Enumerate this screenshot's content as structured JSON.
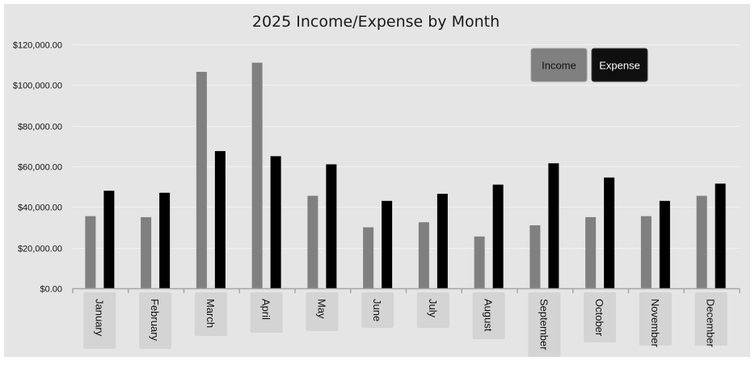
{
  "chart_data": {
    "type": "bar",
    "title": "2025 Income/Expense by Month",
    "categories": [
      "January",
      "February",
      "March",
      "April",
      "May",
      "June",
      "July",
      "August",
      "September",
      "October",
      "November",
      "December"
    ],
    "series": [
      {
        "name": "Income",
        "color": "#808080",
        "values": [
          35500,
          35000,
          106500,
          111000,
          45500,
          30000,
          32500,
          25500,
          31000,
          35000,
          35500,
          45500
        ]
      },
      {
        "name": "Expense",
        "color": "#000000",
        "values": [
          48000,
          47000,
          67500,
          65000,
          61000,
          43000,
          46500,
          51000,
          61500,
          54500,
          43000,
          51500
        ]
      }
    ],
    "ylim": [
      0,
      120000
    ],
    "yticks": [
      0,
      20000,
      40000,
      60000,
      80000,
      100000,
      120000
    ],
    "ytick_labels": [
      "$0.00",
      "$20,000.00",
      "$40,000.00",
      "$60,000.00",
      "$80,000.00",
      "$100,000.00",
      "$120,000.00"
    ],
    "grid": true,
    "legend": "top-right"
  }
}
